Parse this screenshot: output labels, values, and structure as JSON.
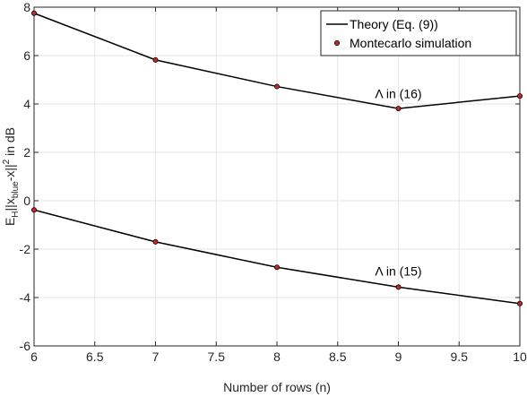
{
  "chart_data": {
    "type": "line",
    "title": "",
    "xlabel": "Number of rows (n)",
    "ylabel": {
      "prefix": "E",
      "prefix_sub": "H",
      "mid": "||x",
      "mid_sub": "blue",
      "suffix": "-x||",
      "sup": "2",
      "tail": " in dB"
    },
    "xlim": [
      6,
      10
    ],
    "ylim": [
      -6,
      8
    ],
    "xticks": [
      "6",
      "6.5",
      "7",
      "7.5",
      "8",
      "8.5",
      "9",
      "9.5",
      "10"
    ],
    "yticks": [
      "-6",
      "-4",
      "-2",
      "0",
      "2",
      "4",
      "6",
      "8"
    ],
    "grid": true,
    "legend_position": "top-right",
    "legend": {
      "line_label": "Theory (Eq. (9))",
      "marker_label": "Montecarlo simulation"
    },
    "x": [
      6,
      7,
      8,
      9,
      10
    ],
    "series": [
      {
        "values": [
          7.75,
          5.82,
          4.72,
          3.81,
          4.33
        ],
        "annotation": {
          "text": "Λ in (16)",
          "x": 9.0,
          "y": 4.25
        }
      },
      {
        "values": [
          -0.38,
          -1.7,
          -2.75,
          -3.57,
          -4.25
        ],
        "annotation": {
          "text": "Λ in (15)",
          "x": 9.0,
          "y": -3.1
        }
      }
    ],
    "colors": {
      "line": "#000000",
      "marker_fill": "#c62828",
      "marker_edge": "#000000",
      "grid": "#e6e6e6",
      "axis": "#262626"
    }
  }
}
